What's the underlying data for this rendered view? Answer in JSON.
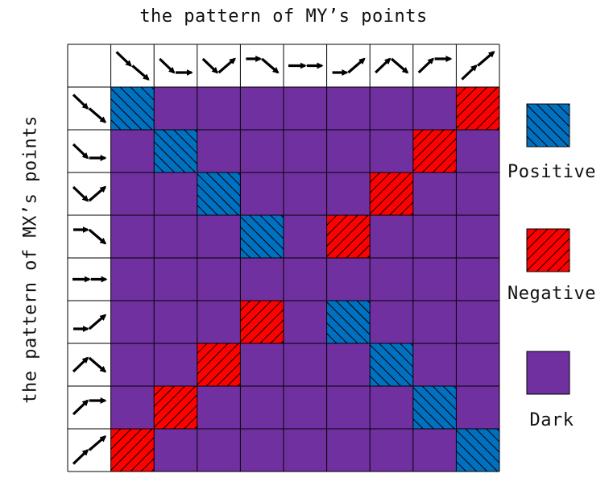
{
  "title_top": "the pattern of MY’s points",
  "title_left": "the pattern of MX’s points",
  "patterns": [
    "down-down",
    "down-flat",
    "down-up",
    "flat-down",
    "flat-flat",
    "flat-up",
    "up-down",
    "up-flat",
    "up-up"
  ],
  "colors": {
    "positive": "#0070C0",
    "negative": "#FF0000",
    "dark": "#7030A0",
    "arrow": "#000000"
  },
  "legend": [
    {
      "key": "positive",
      "label": "Positive",
      "hatch": "backslash"
    },
    {
      "key": "negative",
      "label": "Negative",
      "hatch": "slash"
    },
    {
      "key": "dark",
      "label": "Dark",
      "hatch": "none"
    }
  ],
  "matrix": [
    [
      "positive",
      "dark",
      "dark",
      "dark",
      "dark",
      "dark",
      "dark",
      "dark",
      "negative"
    ],
    [
      "dark",
      "positive",
      "dark",
      "dark",
      "dark",
      "dark",
      "dark",
      "negative",
      "dark"
    ],
    [
      "dark",
      "dark",
      "positive",
      "dark",
      "dark",
      "dark",
      "negative",
      "dark",
      "dark"
    ],
    [
      "dark",
      "dark",
      "dark",
      "positive",
      "dark",
      "negative",
      "dark",
      "dark",
      "dark"
    ],
    [
      "dark",
      "dark",
      "dark",
      "dark",
      "dark",
      "dark",
      "dark",
      "dark",
      "dark"
    ],
    [
      "dark",
      "dark",
      "dark",
      "negative",
      "dark",
      "positive",
      "dark",
      "dark",
      "dark"
    ],
    [
      "dark",
      "dark",
      "negative",
      "dark",
      "dark",
      "dark",
      "positive",
      "dark",
      "dark"
    ],
    [
      "dark",
      "negative",
      "dark",
      "dark",
      "dark",
      "dark",
      "dark",
      "positive",
      "dark"
    ],
    [
      "negative",
      "dark",
      "dark",
      "dark",
      "dark",
      "dark",
      "dark",
      "dark",
      "positive"
    ]
  ]
}
